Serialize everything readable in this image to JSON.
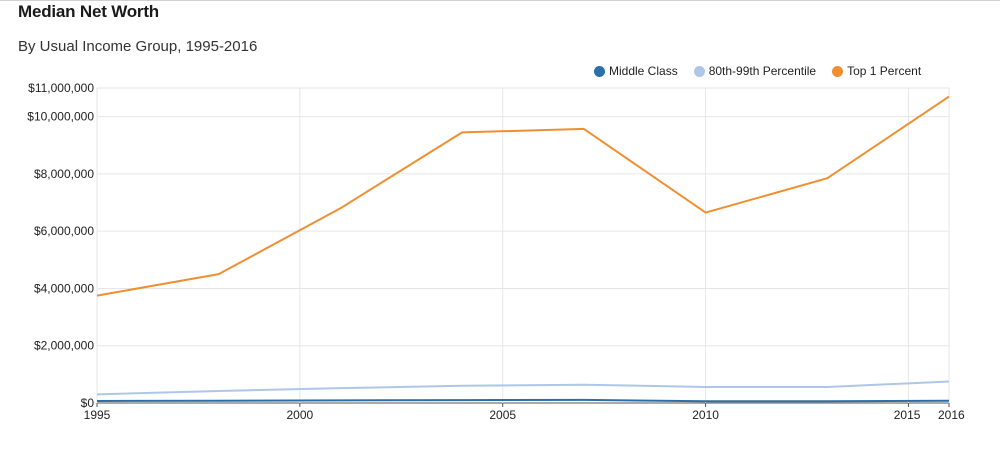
{
  "chart_data": {
    "type": "line",
    "title": "Median Net Worth",
    "subtitle": "By Usual Income Group, 1995-2016",
    "xlabel": "",
    "ylabel": "",
    "xlim": [
      1995,
      2016
    ],
    "ylim": [
      0,
      11000000
    ],
    "x_ticks": [
      "1995",
      "2000",
      "2005",
      "2010",
      "2015",
      "2016"
    ],
    "y_ticks": [
      {
        "value": 0,
        "label": "$0"
      },
      {
        "value": 2000000,
        "label": "$2,000,000"
      },
      {
        "value": 4000000,
        "label": "$4,000,000"
      },
      {
        "value": 6000000,
        "label": "$6,000,000"
      },
      {
        "value": 8000000,
        "label": "$8,000,000"
      },
      {
        "value": 10000000,
        "label": "$10,000,000"
      },
      {
        "value": 11000000,
        "label": "$11,000,000"
      }
    ],
    "grid": true,
    "legend_position": "top-right",
    "x": [
      1995,
      1998,
      2001,
      2004,
      2007,
      2010,
      2013,
      2016
    ],
    "series": [
      {
        "name": "Middle Class",
        "color": "#2b6fa8",
        "values": [
          70000,
          80000,
          90000,
          100000,
          110000,
          60000,
          60000,
          80000
        ]
      },
      {
        "name": "80th-99th Percentile",
        "color": "#aec7e8",
        "values": [
          300000,
          420000,
          520000,
          600000,
          640000,
          560000,
          560000,
          750000
        ]
      },
      {
        "name": "Top 1 Percent",
        "color": "#ef8f31",
        "values": [
          3750000,
          4500000,
          6800000,
          9450000,
          9570000,
          6650000,
          7850000,
          10700000
        ]
      }
    ]
  }
}
